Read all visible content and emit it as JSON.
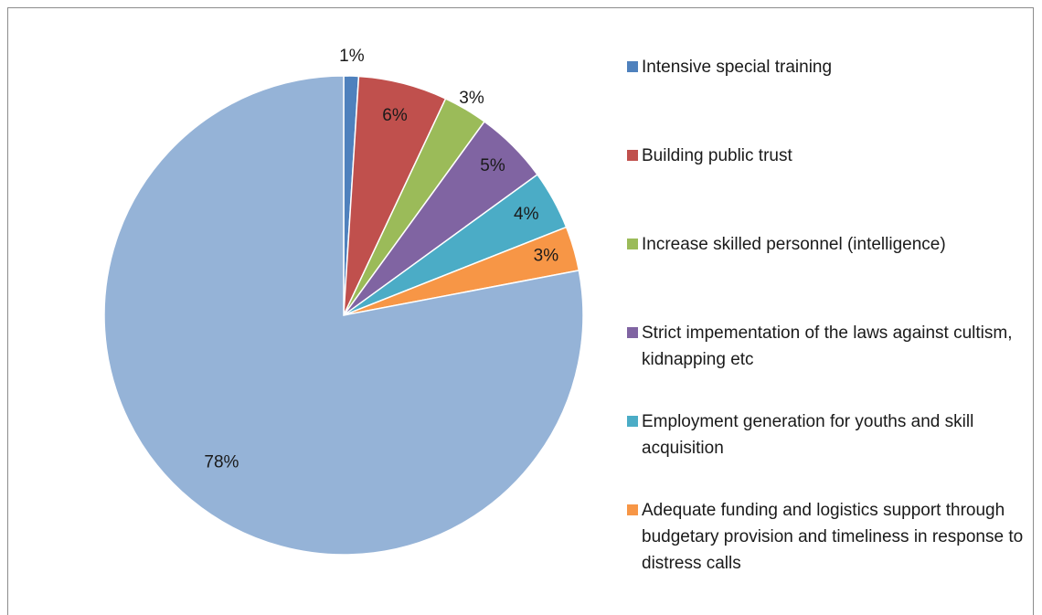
{
  "chart_data": {
    "type": "pie",
    "categories": [
      "Intensive special training",
      "Building public trust",
      "Increase skilled personnel (intelligence)",
      "Strict impementation of the laws against cultism, kidnapping etc",
      "Employment generation for youths and skill acquisition",
      "Adequate funding and logistics support through budgetary  provision and timeliness in response to distress calls",
      null
    ],
    "values": [
      1,
      6,
      3,
      5,
      4,
      3,
      78
    ],
    "value_labels": [
      "1%",
      "6%",
      "3%",
      "5%",
      "4%",
      "3%",
      "78%"
    ],
    "colors": [
      "#4f81bd",
      "#c0504d",
      "#9bbb59",
      "#8064a2",
      "#4bacc6",
      "#f79646",
      "#95b3d7"
    ],
    "legend": "right"
  }
}
